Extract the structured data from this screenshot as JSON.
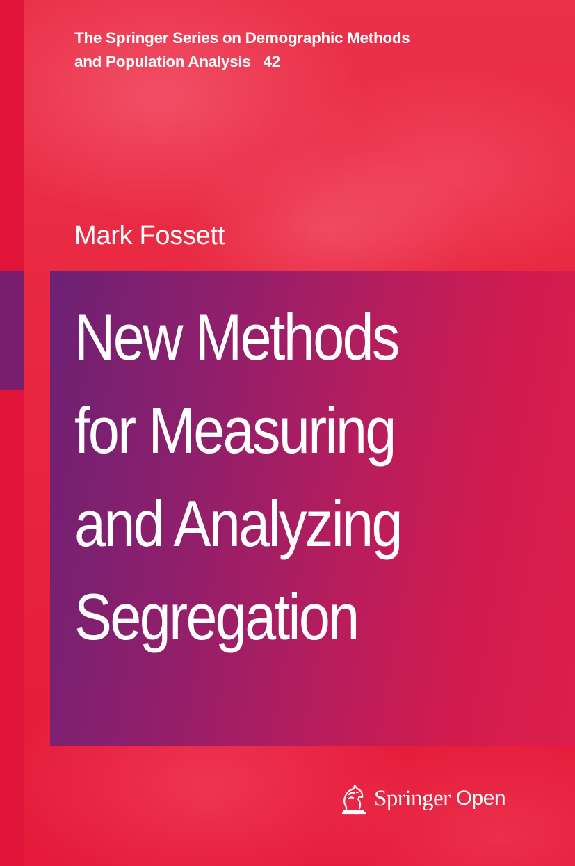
{
  "series": {
    "line1": "The Springer Series on Demographic Methods",
    "line2": "and Population Analysis",
    "volume": "42"
  },
  "author": "Mark Fossett",
  "title": {
    "lines": [
      "New Methods",
      "for Measuring",
      "and Analyzing",
      "Segregation"
    ]
  },
  "publisher": {
    "name": "Springer",
    "imprint": "Open",
    "logo_icon": "springer-horse-logo-icon"
  },
  "colors": {
    "background": "#e8213f",
    "panel_start": "#6c2174",
    "panel_end": "#dc1e4c",
    "text": "#ffffff"
  }
}
